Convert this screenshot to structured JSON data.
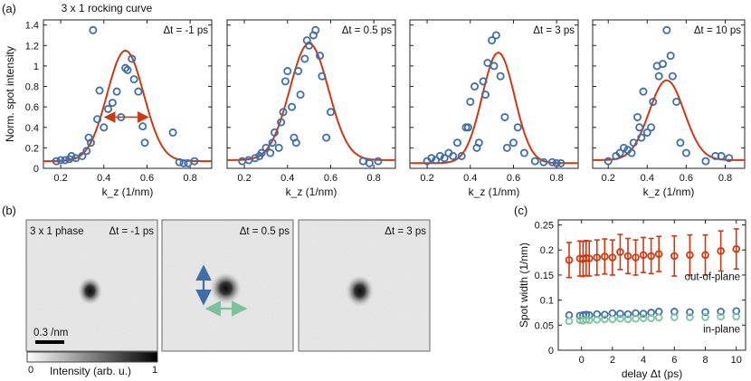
{
  "figure": {
    "panel_a": "(a)",
    "panel_b": "(b)",
    "panel_c": "(c)"
  },
  "colors": {
    "marker": "#3f6ea8",
    "fit": "#cc3a12",
    "in_plane": "#7cc29e",
    "out_of_plane": "#cc3a12",
    "frame": "#555555"
  },
  "chart_data": [
    {
      "type": "scatter",
      "title": "3 x 1 rocking curve",
      "label": "Δt = -1 ps",
      "xlabel": "k_z (1/nm)",
      "ylabel": "Norm. spot intensity",
      "xlim": [
        0.12,
        0.9
      ],
      "ylim": [
        0,
        1.45
      ],
      "xticks": [
        "0.2",
        "0.4",
        "0.6",
        "0.8"
      ],
      "yticks": [
        "0",
        "0.2",
        "0.4",
        "0.6",
        "0.8",
        "1",
        "1.2",
        "1.4"
      ],
      "points": [
        [
          0.18,
          0.07
        ],
        [
          0.2,
          0.08
        ],
        [
          0.22,
          0.08
        ],
        [
          0.24,
          0.09
        ],
        [
          0.25,
          0.12
        ],
        [
          0.27,
          0.1
        ],
        [
          0.3,
          0.12
        ],
        [
          0.32,
          0.17
        ],
        [
          0.33,
          0.3
        ],
        [
          0.34,
          0.25
        ],
        [
          0.35,
          1.35
        ],
        [
          0.37,
          0.48
        ],
        [
          0.38,
          0.76
        ],
        [
          0.4,
          0.4
        ],
        [
          0.42,
          0.58
        ],
        [
          0.44,
          0.64
        ],
        [
          0.46,
          0.75
        ],
        [
          0.48,
          0.5
        ],
        [
          0.5,
          0.98
        ],
        [
          0.51,
          0.96
        ],
        [
          0.53,
          1.07
        ],
        [
          0.54,
          0.87
        ],
        [
          0.56,
          0.75
        ],
        [
          0.58,
          0.41
        ],
        [
          0.59,
          0.25
        ],
        [
          0.72,
          0.35
        ],
        [
          0.75,
          0.06
        ],
        [
          0.77,
          0.05
        ],
        [
          0.79,
          0.05
        ],
        [
          0.82,
          0.07
        ]
      ],
      "fit": {
        "amplitude": 1.08,
        "center": 0.5,
        "sigma": 0.085,
        "offset": 0.07
      },
      "arrow": {
        "from": 0.42,
        "to": 0.59,
        "y": 0.5
      }
    },
    {
      "type": "scatter",
      "label": "Δt = 0.5 ps",
      "xlabel": "k_z (1/nm)",
      "xlim": [
        0.12,
        0.9
      ],
      "ylim": [
        0,
        1.45
      ],
      "xticks": [
        "0.2",
        "0.4",
        "0.6",
        "0.8"
      ],
      "points": [
        [
          0.19,
          0.07
        ],
        [
          0.22,
          0.08
        ],
        [
          0.25,
          0.1
        ],
        [
          0.27,
          0.12
        ],
        [
          0.28,
          0.15
        ],
        [
          0.3,
          0.2
        ],
        [
          0.32,
          0.15
        ],
        [
          0.33,
          0.25
        ],
        [
          0.34,
          0.35
        ],
        [
          0.36,
          0.2
        ],
        [
          0.37,
          0.45
        ],
        [
          0.38,
          0.55
        ],
        [
          0.39,
          0.85
        ],
        [
          0.4,
          0.95
        ],
        [
          0.42,
          0.6
        ],
        [
          0.43,
          0.3
        ],
        [
          0.44,
          0.25
        ],
        [
          0.45,
          0.95
        ],
        [
          0.46,
          0.72
        ],
        [
          0.48,
          1.07
        ],
        [
          0.49,
          1.25
        ],
        [
          0.5,
          1.2
        ],
        [
          0.52,
          1.3
        ],
        [
          0.53,
          1.35
        ],
        [
          0.55,
          1.1
        ],
        [
          0.56,
          0.9
        ],
        [
          0.58,
          0.3
        ],
        [
          0.6,
          0.55
        ],
        [
          0.75,
          0.07
        ],
        [
          0.78,
          0.05
        ],
        [
          0.82,
          0.07
        ]
      ],
      "fit": {
        "amplitude": 1.14,
        "center": 0.5,
        "sigma": 0.09,
        "offset": 0.08
      }
    },
    {
      "type": "scatter",
      "label": "Δt = 3 ps",
      "xlabel": "k_z (1/nm)",
      "xlim": [
        0.12,
        0.9
      ],
      "ylim": [
        0,
        1.45
      ],
      "xticks": [
        "0.2",
        "0.4",
        "0.6",
        "0.8"
      ],
      "points": [
        [
          0.2,
          0.07
        ],
        [
          0.22,
          0.1
        ],
        [
          0.24,
          0.08
        ],
        [
          0.26,
          0.12
        ],
        [
          0.28,
          0.1
        ],
        [
          0.3,
          0.15
        ],
        [
          0.32,
          0.12
        ],
        [
          0.34,
          0.25
        ],
        [
          0.36,
          0.12
        ],
        [
          0.38,
          0.4
        ],
        [
          0.39,
          0.4
        ],
        [
          0.4,
          0.65
        ],
        [
          0.42,
          0.8
        ],
        [
          0.43,
          0.2
        ],
        [
          0.44,
          0.25
        ],
        [
          0.46,
          0.85
        ],
        [
          0.47,
          0.72
        ],
        [
          0.48,
          1.03
        ],
        [
          0.5,
          1.25
        ],
        [
          0.51,
          1.0
        ],
        [
          0.52,
          1.3
        ],
        [
          0.54,
          0.9
        ],
        [
          0.56,
          0.5
        ],
        [
          0.57,
          0.2
        ],
        [
          0.6,
          0.25
        ],
        [
          0.62,
          0.4
        ],
        [
          0.65,
          0.15
        ],
        [
          0.7,
          0.07
        ],
        [
          0.74,
          0.06
        ],
        [
          0.78,
          0.06
        ],
        [
          0.8,
          0.05
        ],
        [
          0.82,
          0.05
        ]
      ],
      "fit": {
        "amplitude": 1.08,
        "center": 0.53,
        "sigma": 0.075,
        "offset": 0.05
      }
    },
    {
      "type": "scatter",
      "label": "Δt = 10 ps",
      "xlabel": "k_z (1/nm)",
      "xlim": [
        0.12,
        0.9
      ],
      "ylim": [
        0,
        1.45
      ],
      "xticks": [
        "0.2",
        "0.4",
        "0.6",
        "0.8"
      ],
      "points": [
        [
          0.2,
          0.07
        ],
        [
          0.24,
          0.12
        ],
        [
          0.26,
          0.15
        ],
        [
          0.28,
          0.2
        ],
        [
          0.3,
          0.18
        ],
        [
          0.32,
          0.15
        ],
        [
          0.33,
          0.25
        ],
        [
          0.35,
          0.5
        ],
        [
          0.36,
          0.4
        ],
        [
          0.37,
          0.3
        ],
        [
          0.38,
          0.75
        ],
        [
          0.4,
          0.35
        ],
        [
          0.42,
          0.4
        ],
        [
          0.43,
          0.65
        ],
        [
          0.45,
          1.0
        ],
        [
          0.46,
          0.9
        ],
        [
          0.48,
          1.02
        ],
        [
          0.5,
          1.35
        ],
        [
          0.52,
          1.1
        ],
        [
          0.53,
          0.9
        ],
        [
          0.55,
          0.65
        ],
        [
          0.57,
          0.25
        ],
        [
          0.6,
          0.15
        ],
        [
          0.7,
          0.07
        ],
        [
          0.75,
          0.12
        ],
        [
          0.78,
          0.12
        ],
        [
          0.82,
          0.1
        ]
      ],
      "fit": {
        "amplitude": 0.78,
        "center": 0.5,
        "sigma": 0.09,
        "offset": 0.08
      }
    },
    {
      "type": "scatter",
      "xlabel": "delay Δt (ps)",
      "ylabel": "Spot width (1/nm)",
      "xlim": [
        -1.5,
        10.6
      ],
      "ylim": [
        0,
        0.26
      ],
      "xticks": [
        "0",
        "2",
        "4",
        "6",
        "8",
        "10"
      ],
      "yticks": [
        "0",
        "0.05",
        "0.1",
        "0.15",
        "0.2",
        "0.25"
      ],
      "series": [
        {
          "name": "out-of-plane",
          "x": [
            -0.8,
            -0.1,
            0.1,
            0.3,
            0.5,
            1.0,
            1.5,
            2.0,
            2.5,
            3.0,
            3.5,
            4.0,
            4.5,
            5.0,
            6.0,
            7.0,
            8.0,
            9.0,
            10.0
          ],
          "y": [
            0.18,
            0.183,
            0.182,
            0.184,
            0.183,
            0.185,
            0.187,
            0.185,
            0.196,
            0.188,
            0.185,
            0.19,
            0.188,
            0.192,
            0.188,
            0.19,
            0.19,
            0.198,
            0.202
          ],
          "err": [
            0.035,
            0.035,
            0.035,
            0.035,
            0.035,
            0.035,
            0.035,
            0.035,
            0.035,
            0.035,
            0.035,
            0.035,
            0.035,
            0.035,
            0.04,
            0.04,
            0.04,
            0.04,
            0.04
          ]
        },
        {
          "name": "",
          "x": [
            -0.8,
            -0.1,
            0.1,
            0.3,
            0.5,
            1.0,
            1.5,
            2.0,
            2.5,
            3.0,
            3.5,
            4.0,
            4.5,
            5.0,
            6.0,
            7.0,
            8.0,
            9.0,
            10.0
          ],
          "y": [
            0.07,
            0.069,
            0.07,
            0.071,
            0.07,
            0.072,
            0.071,
            0.074,
            0.073,
            0.072,
            0.074,
            0.073,
            0.075,
            0.077,
            0.077,
            0.076,
            0.076,
            0.077,
            0.078
          ]
        },
        {
          "name": "in-plane",
          "x": [
            -0.8,
            -0.1,
            0.1,
            0.3,
            0.5,
            1.0,
            1.5,
            2.0,
            2.5,
            3.0,
            3.5,
            4.0,
            4.5,
            5.0,
            6.0,
            7.0,
            8.0,
            9.0,
            10.0
          ],
          "y": [
            0.058,
            0.06,
            0.059,
            0.061,
            0.06,
            0.061,
            0.062,
            0.062,
            0.063,
            0.062,
            0.063,
            0.064,
            0.064,
            0.065,
            0.066,
            0.066,
            0.066,
            0.067,
            0.067
          ]
        }
      ]
    }
  ],
  "images": {
    "tiles": [
      {
        "label": "Δt = -1 ps",
        "phase_label": "3 x 1 phase",
        "spot": "3x1 spot"
      },
      {
        "label": "Δt = 0.5 ps",
        "spot": "3x1 spot"
      },
      {
        "label": "Δt = 3 ps",
        "spot": "3x1 spot"
      }
    ],
    "scale_bar_label": "0.3 /nm",
    "colorbar": {
      "min": "0",
      "max": "1",
      "label": "Intensity (arb. u.)"
    }
  }
}
